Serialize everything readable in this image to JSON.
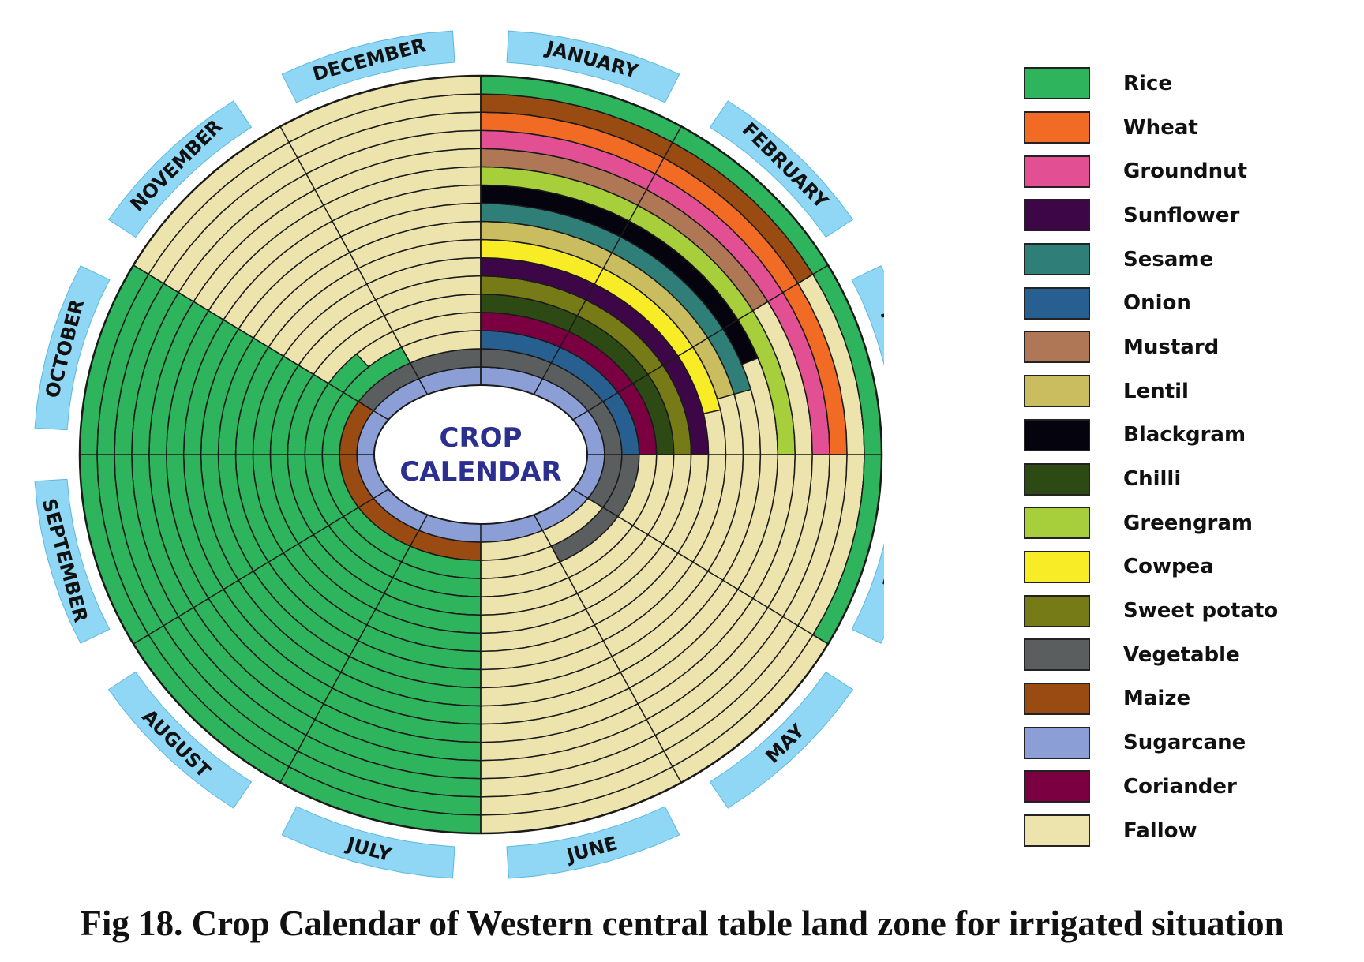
{
  "diagram": {
    "center_title": [
      "CROP",
      "CALENDAR"
    ],
    "caption": "Fig 18. Crop Calendar of Western central table land zone for irrigated situation",
    "months": [
      "JANUARY",
      "FEBRUARY",
      "MARCH",
      "APRIL",
      "MAY",
      "JUNE",
      "JULY",
      "AUGUST",
      "SEPTEMBER",
      "OCTOBER",
      "NOVEMBER",
      "DECEMBER"
    ],
    "month_label_color": "#8fd7f5",
    "ring_border_color": "#1a1a1a",
    "crops": [
      {
        "key": "rice",
        "label": "Rice",
        "color": "#2db45d"
      },
      {
        "key": "wheat",
        "label": "Wheat",
        "color": "#f26b25"
      },
      {
        "key": "groundnut",
        "label": "Groundnut",
        "color": "#e24f92"
      },
      {
        "key": "sunflower",
        "label": "Sunflower",
        "color": "#3d0647"
      },
      {
        "key": "sesame",
        "label": "Sesame",
        "color": "#2f7f78"
      },
      {
        "key": "onion",
        "label": "Onion",
        "color": "#285f91"
      },
      {
        "key": "mustard",
        "label": "Mustard",
        "color": "#b07756"
      },
      {
        "key": "lentil",
        "label": "Lentil",
        "color": "#c9bd60"
      },
      {
        "key": "blackgram",
        "label": "Blackgram",
        "color": "#05030d"
      },
      {
        "key": "chilli",
        "label": "Chilli",
        "color": "#2e4a14"
      },
      {
        "key": "greengram",
        "label": "Greengram",
        "color": "#a6cf3b"
      },
      {
        "key": "cowpea",
        "label": "Cowpea",
        "color": "#f7ec25"
      },
      {
        "key": "sweet_potato",
        "label": "Sweet potato",
        "color": "#767b17"
      },
      {
        "key": "vegetable",
        "label": "Vegetable",
        "color": "#5b5e5f"
      },
      {
        "key": "maize",
        "label": "Maize",
        "color": "#9a4b12"
      },
      {
        "key": "sugarcane",
        "label": "Sugarcane",
        "color": "#8b9ed6"
      },
      {
        "key": "coriander",
        "label": "Coriander",
        "color": "#7a0042"
      },
      {
        "key": "fallow",
        "label": "Fallow",
        "color": "#ece3ad"
      }
    ],
    "rings": [
      {
        "crop": "sugarcane",
        "segments": [
          {
            "crop": "sugarcane",
            "start": 0,
            "end": 12
          }
        ]
      },
      {
        "crop": "vegetable",
        "segments": [
          {
            "crop": "vegetable",
            "start": 0,
            "end": 4
          },
          {
            "crop": "maize",
            "start": 6,
            "end": 10
          },
          {
            "crop": "vegetable",
            "start": 10,
            "end": 12
          }
        ]
      },
      {
        "crop": "onion",
        "segments": [
          {
            "crop": "onion",
            "start": 0,
            "end": 3
          },
          {
            "crop": "vegetable",
            "start": 3,
            "end": 5
          },
          {
            "crop": "rice",
            "start": 6,
            "end": 11
          }
        ]
      },
      {
        "crop": "coriander",
        "segments": [
          {
            "crop": "coriander",
            "start": 0,
            "end": 3
          },
          {
            "crop": "rice",
            "start": 6,
            "end": 10.5
          }
        ]
      },
      {
        "crop": "chilli",
        "segments": [
          {
            "crop": "chilli",
            "start": 0,
            "end": 3
          },
          {
            "crop": "rice",
            "start": 6,
            "end": 10
          }
        ]
      },
      {
        "crop": "sweet_potato",
        "segments": [
          {
            "crop": "sweet_potato",
            "start": 0,
            "end": 3
          },
          {
            "crop": "rice",
            "start": 6,
            "end": 10
          }
        ]
      },
      {
        "crop": "sunflower",
        "segments": [
          {
            "crop": "sunflower",
            "start": 0,
            "end": 3
          },
          {
            "crop": "rice",
            "start": 6,
            "end": 10
          }
        ]
      },
      {
        "crop": "cowpea",
        "segments": [
          {
            "crop": "cowpea",
            "start": 0,
            "end": 2.6
          },
          {
            "crop": "rice",
            "start": 6,
            "end": 10
          }
        ]
      },
      {
        "crop": "lentil",
        "segments": [
          {
            "crop": "lentil",
            "start": 0,
            "end": 2.5
          },
          {
            "crop": "rice",
            "start": 6,
            "end": 10
          }
        ]
      },
      {
        "crop": "sesame",
        "segments": [
          {
            "crop": "sesame",
            "start": 0,
            "end": 2.5
          },
          {
            "crop": "rice",
            "start": 6,
            "end": 10
          }
        ]
      },
      {
        "crop": "blackgram",
        "segments": [
          {
            "crop": "blackgram",
            "start": 0,
            "end": 2.3
          },
          {
            "crop": "rice",
            "start": 6,
            "end": 10
          }
        ]
      },
      {
        "crop": "greengram",
        "segments": [
          {
            "crop": "greengram",
            "start": 0,
            "end": 3
          },
          {
            "crop": "rice",
            "start": 6,
            "end": 10
          }
        ]
      },
      {
        "crop": "mustard",
        "segments": [
          {
            "crop": "mustard",
            "start": 0,
            "end": 2
          },
          {
            "crop": "rice",
            "start": 6,
            "end": 10
          }
        ]
      },
      {
        "crop": "groundnut",
        "segments": [
          {
            "crop": "groundnut",
            "start": 0,
            "end": 3
          },
          {
            "crop": "rice",
            "start": 6,
            "end": 10
          }
        ]
      },
      {
        "crop": "wheat",
        "segments": [
          {
            "crop": "wheat",
            "start": 0,
            "end": 3
          },
          {
            "crop": "rice",
            "start": 6,
            "end": 10
          }
        ]
      },
      {
        "crop": "maize",
        "segments": [
          {
            "crop": "maize",
            "start": 0,
            "end": 2
          },
          {
            "crop": "rice",
            "start": 6,
            "end": 10
          }
        ]
      },
      {
        "crop": "rice",
        "segments": [
          {
            "crop": "rice",
            "start": 0,
            "end": 4
          },
          {
            "crop": "rice",
            "start": 6,
            "end": 10
          }
        ]
      }
    ],
    "fallow_default": "fallow"
  }
}
